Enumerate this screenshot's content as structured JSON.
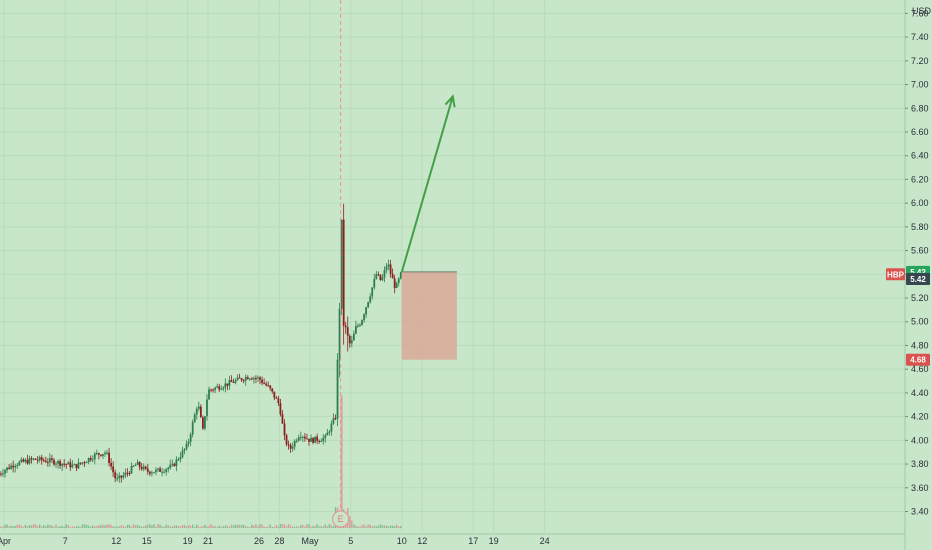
{
  "chart_data": {
    "type": "candlestick",
    "currency": "USD",
    "y_ticks": [
      "3.40",
      "3.60",
      "3.80",
      "4.00",
      "4.20",
      "4.40",
      "4.60",
      "4.80",
      "5.00",
      "5.20",
      "5.40",
      "5.60",
      "5.80",
      "6.00",
      "6.20",
      "6.40",
      "6.60",
      "6.80",
      "7.00",
      "7.20",
      "7.40",
      "7.60"
    ],
    "ylim": [
      3.3,
      7.75
    ],
    "x_ticks": [
      {
        "label": "Apr",
        "day": 1
      },
      {
        "label": "7",
        "day": 7
      },
      {
        "label": "12",
        "day": 12
      },
      {
        "label": "15",
        "day": 15
      },
      {
        "label": "19",
        "day": 19
      },
      {
        "label": "21",
        "day": 21
      },
      {
        "label": "26",
        "day": 26
      },
      {
        "label": "28",
        "day": 28
      },
      {
        "label": "May",
        "day": 31
      },
      {
        "label": "5",
        "day": 35
      },
      {
        "label": "10",
        "day": 40
      },
      {
        "label": "12",
        "day": 42
      },
      {
        "label": "17",
        "day": 47
      },
      {
        "label": "19",
        "day": 49
      },
      {
        "label": "24",
        "day": 54
      }
    ],
    "price_badges": [
      {
        "label": "5.42",
        "value": 5.42,
        "color": "#26a65b"
      },
      {
        "label": "5.42",
        "value": 5.36,
        "color": "#37474f"
      },
      {
        "label": "HBP",
        "value": 5.4,
        "color": "#d9534f"
      },
      {
        "label": "4.68",
        "value": 4.68,
        "color": "#d9534f"
      }
    ],
    "earnings_marker": {
      "label": "E",
      "day": 34.0
    },
    "trade_box": {
      "entry": 5.42,
      "stop": 4.68,
      "start_day": 40.0,
      "end_day": 45.4
    },
    "target_arrow": {
      "from_day": 40.0,
      "from_value": 5.42,
      "to_day": 45.0,
      "to_value": 6.9
    },
    "anchors": [
      {
        "d": 0.5,
        "v": 3.72
      },
      {
        "d": 2,
        "v": 3.8
      },
      {
        "d": 4,
        "v": 3.84
      },
      {
        "d": 6,
        "v": 3.82
      },
      {
        "d": 8,
        "v": 3.78
      },
      {
        "d": 10,
        "v": 3.88
      },
      {
        "d": 11,
        "v": 3.9
      },
      {
        "d": 12,
        "v": 3.66
      },
      {
        "d": 13,
        "v": 3.72
      },
      {
        "d": 14,
        "v": 3.8
      },
      {
        "d": 15,
        "v": 3.74
      },
      {
        "d": 16,
        "v": 3.74
      },
      {
        "d": 17.5,
        "v": 3.78
      },
      {
        "d": 19,
        "v": 3.96
      },
      {
        "d": 20,
        "v": 4.32
      },
      {
        "d": 20.5,
        "v": 4.08
      },
      {
        "d": 21,
        "v": 4.42
      },
      {
        "d": 23,
        "v": 4.48
      },
      {
        "d": 25,
        "v": 4.54
      },
      {
        "d": 26,
        "v": 4.52
      },
      {
        "d": 27,
        "v": 4.44
      },
      {
        "d": 28,
        "v": 4.3
      },
      {
        "d": 28.5,
        "v": 4.02
      },
      {
        "d": 29,
        "v": 3.92
      },
      {
        "d": 30,
        "v": 4.06
      },
      {
        "d": 31,
        "v": 4.0
      },
      {
        "d": 32.5,
        "v": 4.02
      },
      {
        "d": 33.5,
        "v": 4.2
      },
      {
        "d": 33.8,
        "v": 4.84
      },
      {
        "d": 34.1,
        "v": 5.78
      },
      {
        "d": 34.3,
        "v": 5.0
      },
      {
        "d": 34.6,
        "v": 4.86
      },
      {
        "d": 35,
        "v": 4.8
      },
      {
        "d": 35.5,
        "v": 4.95
      },
      {
        "d": 36,
        "v": 5.0
      },
      {
        "d": 37,
        "v": 5.26
      },
      {
        "d": 37.5,
        "v": 5.4
      },
      {
        "d": 38,
        "v": 5.34
      },
      {
        "d": 38.6,
        "v": 5.5
      },
      {
        "d": 39.0,
        "v": 5.38
      },
      {
        "d": 39.4,
        "v": 5.28
      },
      {
        "d": 40.0,
        "v": 5.42
      }
    ],
    "volume_spike": {
      "day": 34.1,
      "value": 4.38
    }
  }
}
